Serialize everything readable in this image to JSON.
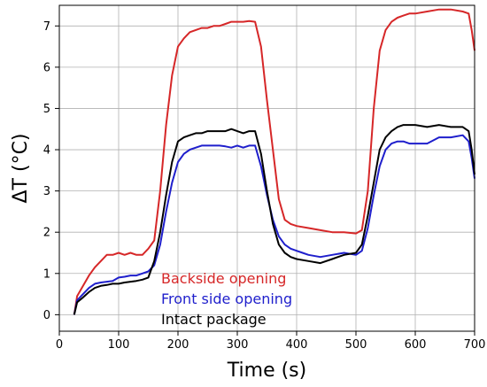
{
  "chart_data": {
    "type": "line",
    "xlabel": "Time (s)",
    "ylabel": "ΔT (°C)",
    "xlim": [
      0,
      700
    ],
    "ylim": [
      -0.4,
      7.5
    ],
    "xticks": [
      "0",
      "100",
      "200",
      "300",
      "400",
      "500",
      "600",
      "700"
    ],
    "yticks": [
      "0",
      "1",
      "2",
      "3",
      "4",
      "5",
      "6",
      "7"
    ],
    "grid": true,
    "legend_position": "lower-center (text-only legend)",
    "series": [
      {
        "name": "Backside opening",
        "color": "#d62728",
        "points": [
          [
            25,
            0.0
          ],
          [
            30,
            0.45
          ],
          [
            40,
            0.7
          ],
          [
            50,
            0.95
          ],
          [
            60,
            1.15
          ],
          [
            70,
            1.3
          ],
          [
            80,
            1.45
          ],
          [
            90,
            1.45
          ],
          [
            100,
            1.5
          ],
          [
            110,
            1.45
          ],
          [
            120,
            1.5
          ],
          [
            130,
            1.45
          ],
          [
            140,
            1.45
          ],
          [
            150,
            1.6
          ],
          [
            160,
            1.8
          ],
          [
            170,
            3.0
          ],
          [
            180,
            4.6
          ],
          [
            190,
            5.8
          ],
          [
            200,
            6.5
          ],
          [
            210,
            6.7
          ],
          [
            220,
            6.85
          ],
          [
            230,
            6.9
          ],
          [
            240,
            6.95
          ],
          [
            250,
            6.95
          ],
          [
            260,
            7.0
          ],
          [
            270,
            7.0
          ],
          [
            280,
            7.05
          ],
          [
            290,
            7.1
          ],
          [
            300,
            7.1
          ],
          [
            310,
            7.1
          ],
          [
            320,
            7.12
          ],
          [
            330,
            7.1
          ],
          [
            340,
            6.5
          ],
          [
            350,
            5.2
          ],
          [
            360,
            4.0
          ],
          [
            370,
            2.8
          ],
          [
            380,
            2.3
          ],
          [
            390,
            2.2
          ],
          [
            400,
            2.15
          ],
          [
            420,
            2.1
          ],
          [
            440,
            2.05
          ],
          [
            460,
            2.0
          ],
          [
            480,
            2.0
          ],
          [
            500,
            1.97
          ],
          [
            510,
            2.05
          ],
          [
            520,
            3.0
          ],
          [
            530,
            5.0
          ],
          [
            540,
            6.4
          ],
          [
            550,
            6.9
          ],
          [
            560,
            7.1
          ],
          [
            570,
            7.2
          ],
          [
            580,
            7.25
          ],
          [
            590,
            7.3
          ],
          [
            600,
            7.3
          ],
          [
            620,
            7.35
          ],
          [
            640,
            7.4
          ],
          [
            660,
            7.4
          ],
          [
            680,
            7.35
          ],
          [
            690,
            7.3
          ],
          [
            695,
            6.9
          ],
          [
            700,
            6.4
          ]
        ]
      },
      {
        "name": "Front side opening",
        "color": "#1f1fcc",
        "points": [
          [
            25,
            0.0
          ],
          [
            30,
            0.35
          ],
          [
            40,
            0.5
          ],
          [
            50,
            0.65
          ],
          [
            60,
            0.75
          ],
          [
            70,
            0.78
          ],
          [
            80,
            0.8
          ],
          [
            90,
            0.82
          ],
          [
            100,
            0.9
          ],
          [
            110,
            0.92
          ],
          [
            120,
            0.95
          ],
          [
            130,
            0.95
          ],
          [
            140,
            1.0
          ],
          [
            150,
            1.05
          ],
          [
            160,
            1.2
          ],
          [
            170,
            1.7
          ],
          [
            180,
            2.5
          ],
          [
            190,
            3.2
          ],
          [
            200,
            3.7
          ],
          [
            210,
            3.9
          ],
          [
            220,
            4.0
          ],
          [
            230,
            4.05
          ],
          [
            240,
            4.1
          ],
          [
            250,
            4.1
          ],
          [
            260,
            4.1
          ],
          [
            270,
            4.1
          ],
          [
            280,
            4.08
          ],
          [
            290,
            4.05
          ],
          [
            300,
            4.1
          ],
          [
            310,
            4.05
          ],
          [
            320,
            4.1
          ],
          [
            330,
            4.1
          ],
          [
            340,
            3.6
          ],
          [
            350,
            2.9
          ],
          [
            360,
            2.3
          ],
          [
            370,
            1.9
          ],
          [
            380,
            1.7
          ],
          [
            390,
            1.6
          ],
          [
            400,
            1.55
          ],
          [
            410,
            1.5
          ],
          [
            420,
            1.45
          ],
          [
            440,
            1.4
          ],
          [
            460,
            1.45
          ],
          [
            480,
            1.5
          ],
          [
            500,
            1.45
          ],
          [
            510,
            1.55
          ],
          [
            520,
            2.1
          ],
          [
            530,
            2.9
          ],
          [
            540,
            3.6
          ],
          [
            550,
            4.0
          ],
          [
            560,
            4.15
          ],
          [
            570,
            4.2
          ],
          [
            580,
            4.2
          ],
          [
            590,
            4.15
          ],
          [
            600,
            4.15
          ],
          [
            620,
            4.15
          ],
          [
            640,
            4.3
          ],
          [
            660,
            4.3
          ],
          [
            680,
            4.35
          ],
          [
            690,
            4.2
          ],
          [
            695,
            3.8
          ],
          [
            700,
            3.3
          ]
        ]
      },
      {
        "name": "Intact package",
        "color": "#000000",
        "points": [
          [
            25,
            0.0
          ],
          [
            30,
            0.3
          ],
          [
            40,
            0.42
          ],
          [
            50,
            0.55
          ],
          [
            60,
            0.65
          ],
          [
            70,
            0.7
          ],
          [
            80,
            0.72
          ],
          [
            90,
            0.75
          ],
          [
            100,
            0.75
          ],
          [
            110,
            0.78
          ],
          [
            120,
            0.8
          ],
          [
            130,
            0.82
          ],
          [
            140,
            0.85
          ],
          [
            150,
            0.9
          ],
          [
            160,
            1.3
          ],
          [
            170,
            2.0
          ],
          [
            180,
            2.9
          ],
          [
            190,
            3.7
          ],
          [
            200,
            4.2
          ],
          [
            210,
            4.3
          ],
          [
            220,
            4.35
          ],
          [
            230,
            4.4
          ],
          [
            240,
            4.4
          ],
          [
            250,
            4.45
          ],
          [
            260,
            4.45
          ],
          [
            270,
            4.45
          ],
          [
            280,
            4.45
          ],
          [
            290,
            4.5
          ],
          [
            300,
            4.45
          ],
          [
            310,
            4.4
          ],
          [
            320,
            4.45
          ],
          [
            330,
            4.45
          ],
          [
            340,
            3.9
          ],
          [
            350,
            3.0
          ],
          [
            360,
            2.2
          ],
          [
            370,
            1.7
          ],
          [
            380,
            1.5
          ],
          [
            390,
            1.4
          ],
          [
            400,
            1.35
          ],
          [
            420,
            1.3
          ],
          [
            440,
            1.25
          ],
          [
            460,
            1.35
          ],
          [
            480,
            1.45
          ],
          [
            500,
            1.5
          ],
          [
            510,
            1.7
          ],
          [
            520,
            2.4
          ],
          [
            530,
            3.2
          ],
          [
            540,
            4.0
          ],
          [
            550,
            4.3
          ],
          [
            560,
            4.45
          ],
          [
            570,
            4.55
          ],
          [
            580,
            4.6
          ],
          [
            590,
            4.6
          ],
          [
            600,
            4.6
          ],
          [
            620,
            4.55
          ],
          [
            640,
            4.6
          ],
          [
            660,
            4.55
          ],
          [
            680,
            4.55
          ],
          [
            690,
            4.45
          ],
          [
            695,
            4.0
          ],
          [
            700,
            3.4
          ]
        ]
      }
    ]
  }
}
